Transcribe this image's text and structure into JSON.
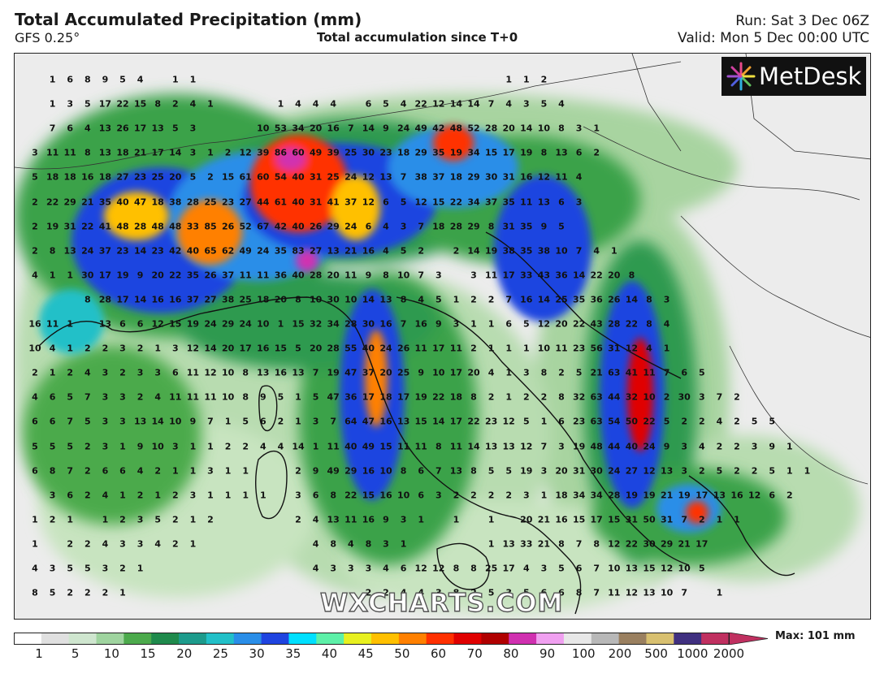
{
  "header": {
    "title": "Total Accumulated Precipitation (mm)",
    "model": "GFS 0.25°",
    "subtitle": "Total accumulation since T+0",
    "run": "Run: Sat 3 Dec 06Z",
    "valid": "Valid: Mon 5 Dec 00:00 UTC"
  },
  "logo": {
    "text": "MetDesk",
    "icon": "metdesk-burst-icon"
  },
  "watermark": "WXCHARTS.COM",
  "legend": {
    "ticks": [
      "1",
      "5",
      "10",
      "15",
      "20",
      "25",
      "30",
      "35",
      "40",
      "45",
      "50",
      "60",
      "70",
      "80",
      "90",
      "100",
      "200",
      "500",
      "1000",
      "2000"
    ],
    "max_label": "Max: 101 mm",
    "palette": [
      "#ffffff",
      "#e0e0e0",
      "#cfe6cf",
      "#9fd49f",
      "#4caa4c",
      "#1f8a4c",
      "#1d9b8c",
      "#22c0c8",
      "#2a8ee8",
      "#1f44e0",
      "#00e0ff",
      "#5df0a8",
      "#e8f020",
      "#ffc000",
      "#ff8000",
      "#ff3000",
      "#e00000",
      "#b00000",
      "#d030b0",
      "#f0a0f0",
      "#e8e8e8",
      "#b8b8b8",
      "#9a8060",
      "#d8c070",
      "#403080",
      "#c03060"
    ]
  },
  "map": {
    "rows": [
      [
        "",
        "1",
        "6",
        "8",
        "9",
        "5",
        "4",
        "",
        "1",
        "1",
        "",
        "",
        "",
        "",
        "",
        "",
        "",
        "",
        "",
        "",
        "",
        "",
        "",
        "",
        "",
        "",
        "",
        "1",
        "1",
        "2",
        "",
        "",
        "",
        "",
        "",
        "",
        "",
        "",
        "",
        "",
        "",
        "",
        "",
        ""
      ],
      [
        "",
        "1",
        "3",
        "5",
        "17",
        "22",
        "15",
        "8",
        "2",
        "4",
        "1",
        "",
        "",
        "",
        "1",
        "4",
        "4",
        "4",
        "",
        "6",
        "5",
        "4",
        "22",
        "12",
        "14",
        "14",
        "7",
        "4",
        "3",
        "5",
        "4",
        "",
        "",
        "",
        "",
        "",
        "",
        "",
        "",
        "",
        "",
        "",
        "",
        ""
      ],
      [
        "",
        "7",
        "6",
        "4",
        "13",
        "26",
        "17",
        "13",
        "5",
        "3",
        "",
        "",
        "",
        "10",
        "53",
        "34",
        "20",
        "16",
        "7",
        "14",
        "9",
        "24",
        "49",
        "42",
        "48",
        "52",
        "28",
        "20",
        "14",
        "10",
        "8",
        "3",
        "1",
        "",
        "",
        "",
        "",
        "",
        "",
        "",
        "",
        "",
        "",
        ""
      ],
      [
        "3",
        "11",
        "11",
        "8",
        "13",
        "18",
        "21",
        "17",
        "14",
        "3",
        "1",
        "2",
        "12",
        "39",
        "86",
        "60",
        "49",
        "39",
        "25",
        "30",
        "23",
        "18",
        "29",
        "35",
        "19",
        "34",
        "15",
        "17",
        "19",
        "8",
        "13",
        "6",
        "2",
        "",
        "",
        "",
        "",
        "",
        "",
        "",
        "",
        "",
        "",
        ""
      ],
      [
        "5",
        "18",
        "18",
        "16",
        "18",
        "27",
        "23",
        "25",
        "20",
        "5",
        "2",
        "15",
        "61",
        "60",
        "54",
        "40",
        "31",
        "25",
        "24",
        "12",
        "13",
        "7",
        "38",
        "37",
        "18",
        "29",
        "30",
        "31",
        "16",
        "12",
        "11",
        "4",
        "",
        "",
        "",
        "",
        "",
        "",
        "",
        "",
        "",
        "",
        "",
        ""
      ],
      [
        "2",
        "22",
        "29",
        "21",
        "35",
        "40",
        "47",
        "18",
        "38",
        "28",
        "25",
        "23",
        "27",
        "44",
        "61",
        "40",
        "31",
        "41",
        "37",
        "12",
        "6",
        "5",
        "12",
        "15",
        "22",
        "34",
        "37",
        "35",
        "11",
        "13",
        "6",
        "3",
        "",
        "",
        "",
        "",
        "",
        "",
        "",
        "",
        "",
        "",
        "",
        ""
      ],
      [
        "2",
        "19",
        "31",
        "22",
        "41",
        "48",
        "28",
        "48",
        "48",
        "33",
        "85",
        "26",
        "52",
        "67",
        "42",
        "40",
        "26",
        "29",
        "24",
        "6",
        "4",
        "3",
        "7",
        "18",
        "28",
        "29",
        "8",
        "31",
        "35",
        "9",
        "5",
        "",
        "",
        "",
        "",
        "",
        "",
        "",
        "",
        "",
        "",
        "",
        "",
        ""
      ],
      [
        "2",
        "8",
        "13",
        "24",
        "37",
        "23",
        "14",
        "23",
        "42",
        "40",
        "65",
        "62",
        "49",
        "24",
        "35",
        "83",
        "27",
        "13",
        "21",
        "16",
        "4",
        "5",
        "2",
        "",
        "2",
        "14",
        "19",
        "38",
        "35",
        "38",
        "10",
        "7",
        "4",
        "1",
        "",
        "",
        "",
        "",
        "",
        "",
        "",
        "",
        "",
        ""
      ],
      [
        "4",
        "1",
        "1",
        "30",
        "17",
        "19",
        "9",
        "20",
        "22",
        "35",
        "26",
        "37",
        "11",
        "11",
        "36",
        "40",
        "28",
        "20",
        "11",
        "9",
        "8",
        "10",
        "7",
        "3",
        "",
        "3",
        "11",
        "17",
        "33",
        "43",
        "36",
        "14",
        "22",
        "20",
        "8",
        "",
        "",
        "",
        "",
        "",
        "",
        "",
        "",
        ""
      ],
      [
        "",
        "",
        "",
        "8",
        "28",
        "17",
        "14",
        "16",
        "16",
        "37",
        "27",
        "38",
        "25",
        "18",
        "20",
        "8",
        "10",
        "30",
        "10",
        "14",
        "13",
        "8",
        "4",
        "5",
        "1",
        "2",
        "2",
        "7",
        "16",
        "14",
        "25",
        "35",
        "36",
        "26",
        "14",
        "8",
        "3",
        "",
        "",
        "",
        "",
        "",
        "",
        ""
      ],
      [
        "16",
        "11",
        "1",
        "",
        "13",
        "6",
        "6",
        "12",
        "15",
        "19",
        "24",
        "29",
        "24",
        "10",
        "1",
        "15",
        "32",
        "34",
        "28",
        "30",
        "16",
        "7",
        "16",
        "9",
        "3",
        "1",
        "1",
        "6",
        "5",
        "12",
        "20",
        "22",
        "43",
        "28",
        "22",
        "8",
        "4",
        "",
        "",
        "",
        "",
        "",
        "",
        ""
      ],
      [
        "10",
        "4",
        "1",
        "2",
        "2",
        "3",
        "2",
        "1",
        "3",
        "12",
        "14",
        "20",
        "17",
        "16",
        "15",
        "5",
        "20",
        "28",
        "55",
        "40",
        "24",
        "26",
        "11",
        "17",
        "11",
        "2",
        "1",
        "1",
        "1",
        "10",
        "11",
        "23",
        "56",
        "31",
        "12",
        "4",
        "1",
        "",
        "",
        "",
        "",
        "",
        "",
        ""
      ],
      [
        "2",
        "1",
        "2",
        "4",
        "3",
        "2",
        "3",
        "3",
        "6",
        "11",
        "12",
        "10",
        "8",
        "13",
        "16",
        "13",
        "7",
        "19",
        "47",
        "37",
        "20",
        "25",
        "9",
        "10",
        "17",
        "20",
        "4",
        "1",
        "3",
        "8",
        "2",
        "5",
        "21",
        "63",
        "41",
        "11",
        "7",
        "6",
        "5",
        "",
        "",
        "",
        "",
        ""
      ],
      [
        "4",
        "6",
        "5",
        "7",
        "3",
        "3",
        "2",
        "4",
        "11",
        "11",
        "11",
        "10",
        "8",
        "9",
        "5",
        "1",
        "5",
        "47",
        "36",
        "17",
        "18",
        "17",
        "19",
        "22",
        "18",
        "8",
        "2",
        "1",
        "2",
        "2",
        "8",
        "32",
        "63",
        "44",
        "32",
        "10",
        "2",
        "30",
        "3",
        "7",
        "2",
        "",
        "",
        ""
      ],
      [
        "6",
        "6",
        "7",
        "5",
        "3",
        "3",
        "13",
        "14",
        "10",
        "9",
        "7",
        "1",
        "5",
        "6",
        "2",
        "1",
        "3",
        "7",
        "64",
        "47",
        "16",
        "13",
        "15",
        "14",
        "17",
        "22",
        "23",
        "12",
        "5",
        "1",
        "6",
        "23",
        "63",
        "54",
        "50",
        "22",
        "5",
        "2",
        "2",
        "4",
        "2",
        "5",
        "5",
        ""
      ],
      [
        "5",
        "5",
        "5",
        "2",
        "3",
        "1",
        "9",
        "10",
        "3",
        "1",
        "1",
        "2",
        "2",
        "4",
        "4",
        "14",
        "1",
        "11",
        "40",
        "49",
        "15",
        "11",
        "11",
        "8",
        "11",
        "14",
        "13",
        "13",
        "12",
        "7",
        "3",
        "19",
        "48",
        "44",
        "40",
        "24",
        "9",
        "3",
        "4",
        "2",
        "2",
        "3",
        "9",
        "1"
      ],
      [
        "6",
        "8",
        "7",
        "2",
        "6",
        "6",
        "4",
        "2",
        "1",
        "1",
        "3",
        "1",
        "1",
        "",
        "",
        "2",
        "9",
        "49",
        "29",
        "16",
        "10",
        "8",
        "6",
        "7",
        "13",
        "8",
        "5",
        "5",
        "19",
        "3",
        "20",
        "31",
        "30",
        "24",
        "27",
        "12",
        "13",
        "3",
        "2",
        "5",
        "2",
        "2",
        "5",
        "1",
        "1"
      ],
      [
        "",
        "3",
        "6",
        "2",
        "4",
        "1",
        "2",
        "1",
        "2",
        "3",
        "1",
        "1",
        "1",
        "1",
        "",
        "3",
        "6",
        "8",
        "22",
        "15",
        "16",
        "10",
        "6",
        "3",
        "2",
        "2",
        "2",
        "2",
        "3",
        "1",
        "18",
        "34",
        "34",
        "28",
        "19",
        "19",
        "21",
        "19",
        "17",
        "13",
        "16",
        "12",
        "6",
        "2"
      ],
      [
        "1",
        "2",
        "1",
        "",
        "1",
        "2",
        "3",
        "5",
        "2",
        "1",
        "2",
        "",
        "",
        "",
        "",
        "2",
        "4",
        "13",
        "11",
        "16",
        "9",
        "3",
        "1",
        "",
        "1",
        "",
        "1",
        "",
        "20",
        "21",
        "16",
        "15",
        "17",
        "15",
        "31",
        "50",
        "31",
        "7",
        "2",
        "1",
        "1",
        "",
        "",
        ""
      ],
      [
        "1",
        "",
        "2",
        "2",
        "4",
        "3",
        "3",
        "4",
        "2",
        "1",
        "",
        "",
        "",
        "",
        "",
        "",
        "4",
        "8",
        "4",
        "8",
        "3",
        "1",
        "",
        "",
        "",
        "",
        "1",
        "13",
        "33",
        "21",
        "8",
        "7",
        "8",
        "12",
        "22",
        "30",
        "29",
        "21",
        "17",
        "",
        "",
        "",
        "",
        ""
      ],
      [
        "4",
        "3",
        "5",
        "5",
        "3",
        "2",
        "1",
        "",
        "",
        "",
        "",
        "",
        "",
        "",
        "",
        "",
        "4",
        "3",
        "3",
        "3",
        "4",
        "6",
        "12",
        "12",
        "8",
        "8",
        "25",
        "17",
        "4",
        "3",
        "5",
        "6",
        "7",
        "10",
        "13",
        "15",
        "12",
        "10",
        "5",
        "",
        "",
        "",
        "",
        ""
      ],
      [
        "8",
        "5",
        "2",
        "2",
        "2",
        "1",
        "",
        "",
        "",
        "",
        "",
        "",
        "",
        "",
        "",
        "",
        "",
        "",
        "",
        "2",
        "2",
        "4",
        "4",
        "3",
        "8",
        "2",
        "5",
        "3",
        "5",
        "6",
        "6",
        "8",
        "7",
        "11",
        "12",
        "13",
        "10",
        "7",
        "",
        "1",
        "",
        "",
        "",
        ""
      ]
    ]
  }
}
